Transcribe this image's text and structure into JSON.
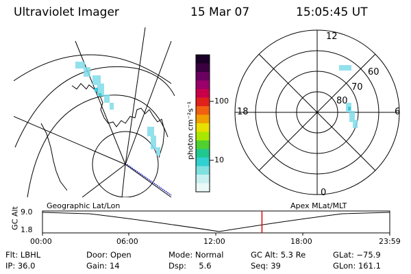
{
  "header": {
    "title": "Ultraviolet Imager",
    "date": "15 Mar 07",
    "time": "15:05:45 UT"
  },
  "panels": {
    "left_label": "Geographic Lat/Lon",
    "right_label": "Apex MLat/MLT"
  },
  "colorbar": {
    "unit_label": "photon cm⁻²s⁻¹",
    "ticks": [
      "100",
      "10"
    ],
    "colors": [
      "#1a0026",
      "#3a0040",
      "#6a0060",
      "#9a006a",
      "#c8004a",
      "#e0201a",
      "#f06010",
      "#f0a000",
      "#e8e000",
      "#a8e800",
      "#50d030",
      "#20c890",
      "#30d0d0",
      "#80e0e0",
      "#c8f0f0",
      "#eaf8f8"
    ]
  },
  "polar": {
    "mlt_labels": {
      "top": "12",
      "bottom": "0",
      "left": "18",
      "right": "6"
    },
    "lat_labels": [
      "60",
      "70",
      "80"
    ]
  },
  "timeline": {
    "y_axis_label": "GC Alt",
    "y_ticks": [
      "9.0",
      "1.8"
    ],
    "x_ticks": [
      "00:00",
      "06:00",
      "12:00",
      "18:00",
      "23:59"
    ],
    "current_time_fraction": 0.632,
    "marker_color": "#e00000"
  },
  "info": {
    "flt": "Flt: LBHL",
    "ip": "IP: 36.0",
    "door": "Door: Open",
    "gain": "Gain: 14",
    "mode": "Mode: Normal",
    "dsp": "Dsp:     5.6",
    "gcalt": "GC Alt: 5.3 Re",
    "seq": "Seq: 39",
    "glat": "GLat: −75.9",
    "glon": "GLon: 161.1"
  }
}
